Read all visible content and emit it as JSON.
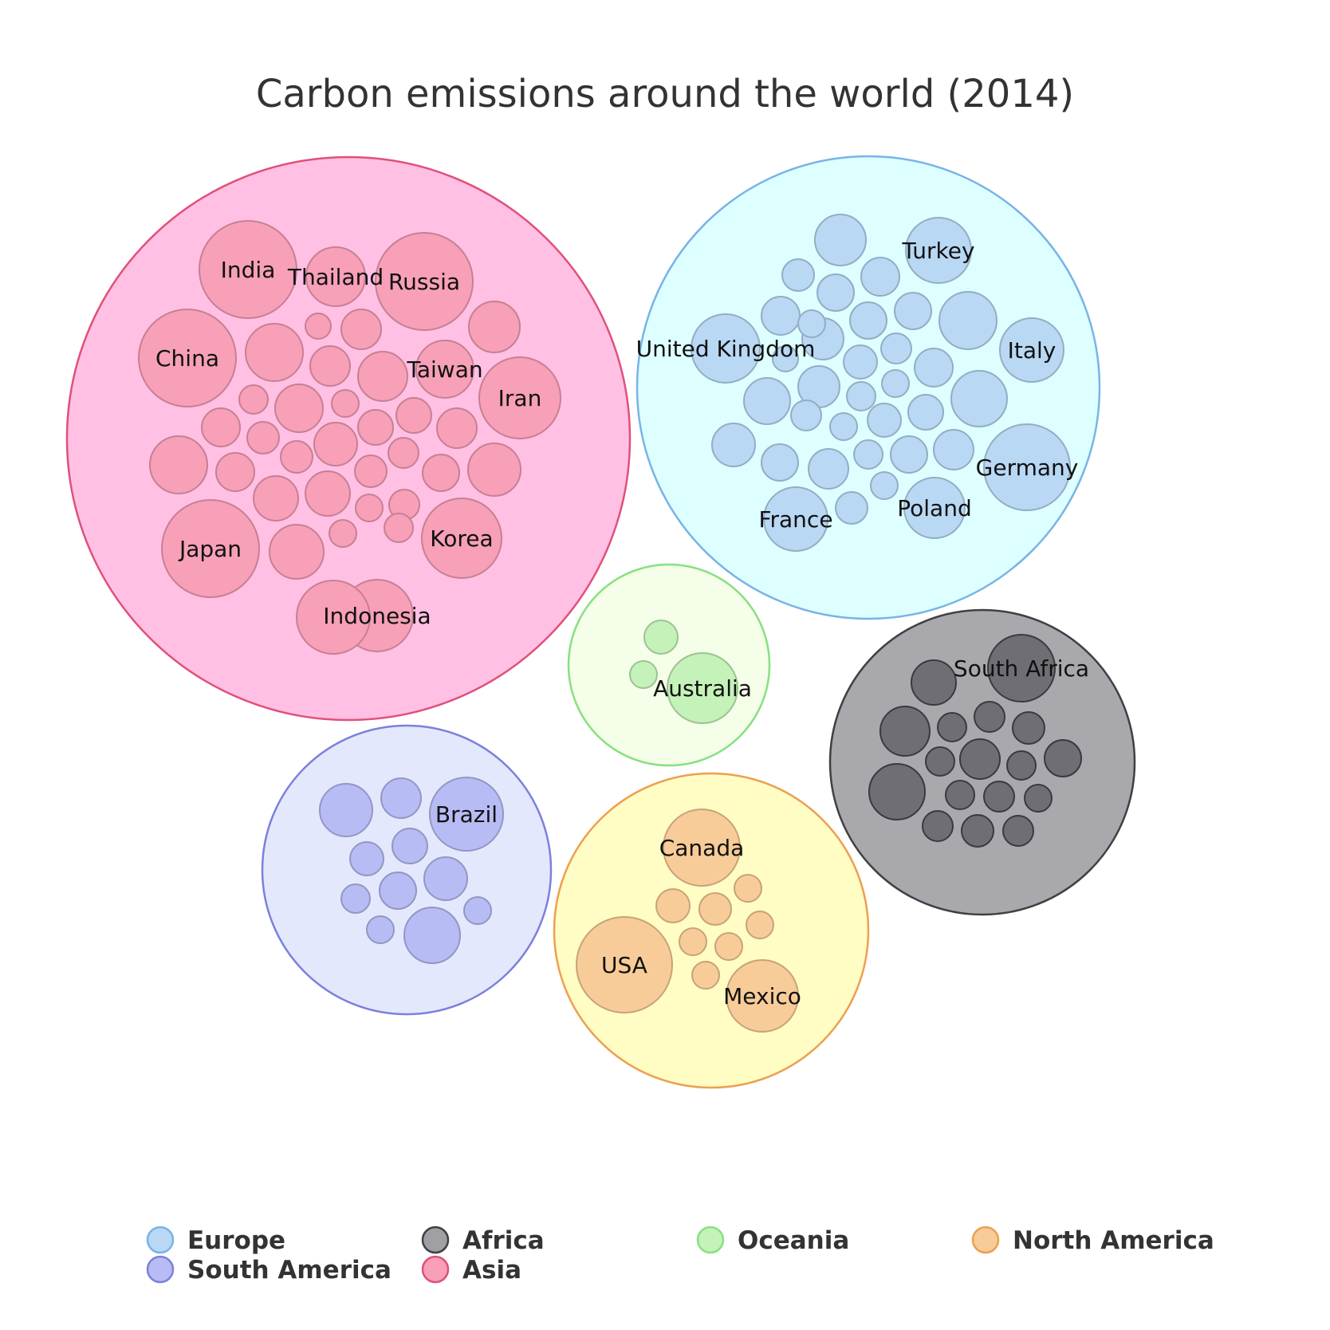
{
  "chart_data": {
    "type": "packed-bubble",
    "title": "Carbon emissions around the world (2014)",
    "legend_position": "bottom",
    "series": [
      {
        "name": "Asia",
        "color": "#f7a0b8",
        "labeled_countries": [
          "India",
          "Thailand",
          "Russia",
          "China",
          "Taiwan",
          "Iran",
          "Japan",
          "Korea",
          "Indonesia"
        ],
        "bubble_count": 49
      },
      {
        "name": "Europe",
        "color": "#b8d8f4",
        "labeled_countries": [
          "Turkey",
          "United Kingdom",
          "Italy",
          "Germany",
          "France",
          "Poland"
        ],
        "bubble_count": 44
      },
      {
        "name": "Oceania",
        "color": "#c4f2b8",
        "labeled_countries": [
          "Australia"
        ],
        "bubble_count": 3
      },
      {
        "name": "Africa",
        "color": "#808080",
        "labeled_countries": [
          "South Africa"
        ],
        "bubble_count": 19
      },
      {
        "name": "South America",
        "color": "#b8bcf4",
        "labeled_countries": [
          "Brazil"
        ],
        "bubble_count": 12
      },
      {
        "name": "North America",
        "color": "#f8cc98",
        "labeled_countries": [
          "Canada",
          "USA",
          "Mexico"
        ],
        "bubble_count": 12
      }
    ],
    "legend": [
      "Europe",
      "Africa",
      "Oceania",
      "North America",
      "South America",
      "Asia"
    ]
  }
}
